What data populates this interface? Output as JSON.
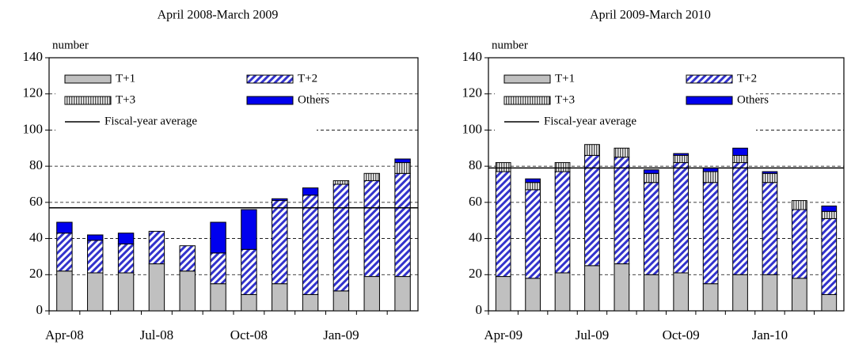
{
  "chart_data": [
    {
      "type": "stacked_bar",
      "title": "April 2008-March 2009",
      "y_label": "number",
      "categories": [
        "Apr-08",
        null,
        null,
        "Jul-08",
        null,
        null,
        "Oct-08",
        null,
        null,
        "Jan-09",
        null,
        null
      ],
      "series": [
        {
          "name": "T+1",
          "color": "#c0c0c0",
          "fill_style": "solid",
          "values": [
            22,
            21,
            21,
            26,
            22,
            15,
            9,
            15,
            9,
            11,
            19,
            19
          ]
        },
        {
          "name": "T+2",
          "color": "#3333cc",
          "fill_style": "hatch",
          "values": [
            21,
            18,
            16,
            18,
            14,
            17,
            25,
            46,
            55,
            59,
            53,
            57
          ]
        },
        {
          "name": "T+3",
          "color": "#555555",
          "fill_style": "stripes",
          "values": [
            0,
            0,
            0,
            0,
            0,
            0,
            0,
            0,
            0,
            2,
            4,
            6
          ]
        },
        {
          "name": "Others",
          "color": "#0000ee",
          "fill_style": "solid",
          "values": [
            6,
            3,
            6,
            0,
            0,
            17,
            22,
            1,
            4,
            0,
            0,
            2
          ]
        }
      ],
      "average": {
        "name": "Fiscal-year average",
        "value": 57
      },
      "ylim": [
        0,
        140
      ],
      "yticks": [
        0,
        20,
        40,
        60,
        80,
        100,
        120,
        140
      ],
      "grid": true
    },
    {
      "type": "stacked_bar",
      "title": "April 2009-March 2010",
      "y_label": "number",
      "categories": [
        "Apr-09",
        null,
        null,
        "Jul-09",
        null,
        null,
        "Oct-09",
        null,
        null,
        "Jan-10",
        null,
        null
      ],
      "series": [
        {
          "name": "T+1",
          "color": "#c0c0c0",
          "fill_style": "solid",
          "values": [
            19,
            18,
            21,
            25,
            26,
            20,
            21,
            15,
            20,
            20,
            18,
            9
          ]
        },
        {
          "name": "T+2",
          "color": "#3333cc",
          "fill_style": "hatch",
          "values": [
            58,
            49,
            56,
            61,
            59,
            51,
            61,
            56,
            62,
            51,
            38,
            42
          ]
        },
        {
          "name": "T+3",
          "color": "#555555",
          "fill_style": "stripes",
          "values": [
            5,
            4,
            5,
            6,
            5,
            5,
            4,
            6,
            4,
            5,
            5,
            4
          ]
        },
        {
          "name": "Others",
          "color": "#0000ee",
          "fill_style": "solid",
          "values": [
            0,
            2,
            0,
            0,
            0,
            2,
            1,
            2,
            4,
            1,
            0,
            3
          ]
        }
      ],
      "average": {
        "name": "Fiscal-year average",
        "value": 79
      },
      "ylim": [
        0,
        140
      ],
      "yticks": [
        0,
        20,
        40,
        60,
        80,
        100,
        120,
        140
      ],
      "grid": true
    }
  ]
}
